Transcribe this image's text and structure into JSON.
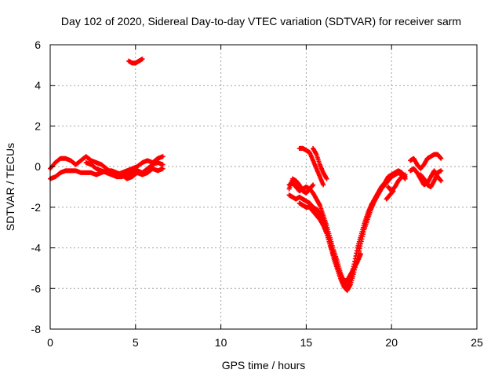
{
  "chart_data": {
    "type": "scatter",
    "title": "Day 102 of 2020, Sidereal Day-to-day VTEC variation (SDTVAR) for receiver sarm",
    "xlabel": "GPS time / hours",
    "ylabel": "SDTVAR / TECUs",
    "xlim": [
      0,
      25
    ],
    "ylim": [
      -8,
      6
    ],
    "xticks": [
      0,
      5,
      10,
      15,
      20,
      25
    ],
    "yticks": [
      -8,
      -6,
      -4,
      -2,
      0,
      2,
      4,
      6
    ],
    "xtick_labels": [
      "0",
      "5",
      "10",
      "15",
      "20",
      "25"
    ],
    "ytick_labels": [
      "-8",
      "-6",
      "-4",
      "-2",
      "0",
      "2",
      "4",
      "6"
    ],
    "grid": true,
    "marker": "+",
    "series": [
      {
        "name": "sarm",
        "color": "#ff0000",
        "segments": [
          [
            [
              0.0,
              -0.1
            ],
            [
              0.3,
              0.2
            ],
            [
              0.6,
              0.4
            ],
            [
              0.9,
              0.4
            ],
            [
              1.2,
              0.3
            ],
            [
              1.5,
              0.1
            ],
            [
              1.8,
              0.3
            ],
            [
              2.1,
              0.5
            ],
            [
              2.4,
              0.3
            ],
            [
              2.7,
              0.2
            ],
            [
              3.0,
              0.1
            ],
            [
              3.3,
              -0.1
            ],
            [
              3.6,
              -0.3
            ],
            [
              3.9,
              -0.4
            ],
            [
              4.2,
              -0.3
            ],
            [
              4.5,
              -0.2
            ],
            [
              4.8,
              -0.1
            ],
            [
              5.1,
              0.0
            ],
            [
              5.4,
              0.2
            ],
            [
              5.7,
              0.3
            ],
            [
              6.0,
              0.2
            ],
            [
              6.3,
              0.4
            ],
            [
              6.6,
              0.5
            ]
          ],
          [
            [
              0.0,
              -0.6
            ],
            [
              0.3,
              -0.5
            ],
            [
              0.6,
              -0.3
            ],
            [
              0.9,
              -0.2
            ],
            [
              1.2,
              -0.2
            ],
            [
              1.5,
              -0.2
            ],
            [
              1.8,
              -0.3
            ],
            [
              2.1,
              -0.3
            ],
            [
              2.4,
              -0.3
            ],
            [
              2.7,
              -0.4
            ],
            [
              3.0,
              -0.3
            ],
            [
              3.3,
              -0.2
            ],
            [
              3.6,
              -0.2
            ],
            [
              3.9,
              -0.3
            ],
            [
              4.2,
              -0.4
            ],
            [
              4.5,
              -0.6
            ],
            [
              4.8,
              -0.5
            ],
            [
              5.1,
              -0.3
            ],
            [
              5.4,
              -0.4
            ],
            [
              5.7,
              -0.3
            ],
            [
              6.0,
              -0.1
            ],
            [
              6.3,
              -0.2
            ],
            [
              6.6,
              -0.1
            ]
          ],
          [
            [
              2.1,
              0.2
            ],
            [
              2.4,
              0.1
            ],
            [
              2.7,
              -0.1
            ],
            [
              3.0,
              -0.2
            ],
            [
              3.3,
              -0.3
            ],
            [
              3.6,
              -0.4
            ],
            [
              3.9,
              -0.5
            ],
            [
              4.2,
              -0.5
            ],
            [
              4.5,
              -0.4
            ],
            [
              4.8,
              -0.3
            ],
            [
              5.1,
              -0.2
            ],
            [
              5.4,
              -0.3
            ],
            [
              5.7,
              -0.1
            ],
            [
              6.0,
              0.1
            ],
            [
              6.3,
              0.2
            ],
            [
              6.6,
              0.1
            ]
          ],
          [
            [
              4.6,
              5.2
            ],
            [
              4.8,
              5.1
            ],
            [
              5.0,
              5.1
            ],
            [
              5.2,
              5.2
            ],
            [
              5.4,
              5.3
            ]
          ],
          [
            [
              14.0,
              -0.9
            ],
            [
              14.2,
              -0.8
            ],
            [
              14.4,
              -1.0
            ],
            [
              14.6,
              -1.2
            ],
            [
              14.8,
              -1.1
            ],
            [
              15.0,
              -1.0
            ],
            [
              15.2,
              -1.1
            ],
            [
              15.4,
              -1.3
            ],
            [
              15.6,
              -1.6
            ],
            [
              15.8,
              -1.9
            ],
            [
              16.0,
              -2.4
            ],
            [
              16.2,
              -2.9
            ],
            [
              16.4,
              -3.5
            ],
            [
              16.6,
              -4.1
            ],
            [
              16.8,
              -4.6
            ],
            [
              17.0,
              -5.2
            ],
            [
              17.2,
              -5.7
            ],
            [
              17.4,
              -5.9
            ],
            [
              17.6,
              -5.5
            ],
            [
              17.8,
              -4.8
            ],
            [
              18.0,
              -4.0
            ],
            [
              18.2,
              -3.4
            ],
            [
              18.4,
              -2.8
            ],
            [
              18.6,
              -2.3
            ],
            [
              18.8,
              -1.9
            ],
            [
              19.0,
              -1.6
            ],
            [
              19.2,
              -1.3
            ],
            [
              19.4,
              -1.0
            ],
            [
              19.6,
              -0.8
            ],
            [
              19.8,
              -0.5
            ],
            [
              20.0,
              -0.4
            ],
            [
              20.2,
              -0.3
            ],
            [
              20.4,
              -0.2
            ],
            [
              20.6,
              -0.3
            ],
            [
              20.8,
              -0.5
            ]
          ],
          [
            [
              14.0,
              -1.4
            ],
            [
              14.2,
              -1.5
            ],
            [
              14.4,
              -1.6
            ],
            [
              14.6,
              -1.5
            ],
            [
              14.8,
              -1.6
            ],
            [
              15.0,
              -1.7
            ],
            [
              15.2,
              -1.8
            ],
            [
              15.4,
              -2.0
            ],
            [
              15.6,
              -2.1
            ],
            [
              15.8,
              -2.3
            ],
            [
              16.0,
              -2.7
            ],
            [
              16.2,
              -3.2
            ],
            [
              16.4,
              -3.8
            ],
            [
              16.6,
              -4.5
            ],
            [
              16.8,
              -5.0
            ],
            [
              17.0,
              -5.5
            ],
            [
              17.2,
              -5.9
            ],
            [
              17.4,
              -6.1
            ],
            [
              17.6,
              -5.8
            ],
            [
              17.8,
              -5.2
            ],
            [
              18.0,
              -4.5
            ],
            [
              18.2,
              -3.8
            ],
            [
              18.4,
              -3.1
            ],
            [
              18.6,
              -2.6
            ],
            [
              18.8,
              -2.1
            ],
            [
              19.0,
              -1.7
            ],
            [
              19.2,
              -1.4
            ],
            [
              19.4,
              -1.1
            ],
            [
              19.6,
              -0.9
            ],
            [
              19.8,
              -0.7
            ],
            [
              20.0,
              -0.5
            ],
            [
              20.2,
              -0.4
            ],
            [
              20.4,
              -0.3
            ],
            [
              20.6,
              -0.4
            ],
            [
              20.8,
              -0.6
            ]
          ],
          [
            [
              14.6,
              -1.8
            ],
            [
              14.8,
              -1.9
            ],
            [
              15.0,
              -2.0
            ],
            [
              15.2,
              -2.0
            ],
            [
              15.4,
              -2.2
            ],
            [
              15.6,
              -2.4
            ],
            [
              15.8,
              -2.6
            ],
            [
              16.0,
              -2.9
            ],
            [
              16.2,
              -3.3
            ],
            [
              16.4,
              -3.9
            ],
            [
              16.6,
              -4.4
            ],
            [
              16.8,
              -4.9
            ],
            [
              17.0,
              -5.3
            ],
            [
              17.2,
              -5.6
            ],
            [
              17.4,
              -5.6
            ],
            [
              17.6,
              -5.3
            ],
            [
              17.8,
              -5.0
            ],
            [
              18.0,
              -4.7
            ],
            [
              18.2,
              -4.3
            ]
          ],
          [
            [
              14.0,
              -1.1
            ],
            [
              14.2,
              -0.6
            ],
            [
              14.4,
              -0.7
            ],
            [
              14.6,
              -0.9
            ],
            [
              14.8,
              -1.2
            ],
            [
              15.0,
              -1.3
            ],
            [
              15.2,
              -1.1
            ],
            [
              15.4,
              -0.9
            ]
          ],
          [
            [
              14.6,
              0.9
            ],
            [
              14.8,
              0.9
            ],
            [
              15.0,
              0.8
            ],
            [
              15.2,
              0.7
            ],
            [
              15.4,
              0.3
            ],
            [
              15.6,
              -0.1
            ],
            [
              15.8,
              -0.5
            ],
            [
              16.0,
              -0.9
            ]
          ],
          [
            [
              15.4,
              0.9
            ],
            [
              15.6,
              0.6
            ],
            [
              15.8,
              0.1
            ],
            [
              16.0,
              -0.3
            ],
            [
              16.2,
              -0.6
            ]
          ],
          [
            [
              19.8,
              -1.0
            ],
            [
              20.0,
              -1.2
            ],
            [
              20.2,
              -1.0
            ],
            [
              20.4,
              -0.7
            ],
            [
              20.6,
              -0.5
            ],
            [
              20.8,
              -0.4
            ]
          ],
          [
            [
              19.7,
              -1.6
            ],
            [
              19.9,
              -1.4
            ],
            [
              20.1,
              -1.2
            ]
          ],
          [
            [
              21.1,
              0.3
            ],
            [
              21.3,
              0.4
            ],
            [
              21.5,
              0.1
            ],
            [
              21.7,
              -0.1
            ],
            [
              21.9,
              0.1
            ],
            [
              22.1,
              0.4
            ],
            [
              22.3,
              0.5
            ],
            [
              22.5,
              0.6
            ],
            [
              22.7,
              0.6
            ],
            [
              22.9,
              0.4
            ]
          ],
          [
            [
              21.1,
              -0.2
            ],
            [
              21.3,
              -0.1
            ],
            [
              21.5,
              -0.3
            ],
            [
              21.7,
              -0.6
            ],
            [
              21.9,
              -0.9
            ],
            [
              22.1,
              -0.8
            ],
            [
              22.3,
              -0.5
            ],
            [
              22.5,
              -0.2
            ],
            [
              22.7,
              -0.5
            ],
            [
              22.9,
              -0.7
            ]
          ],
          [
            [
              21.7,
              -0.4
            ],
            [
              21.9,
              -0.6
            ],
            [
              22.1,
              -0.9
            ],
            [
              22.3,
              -1.0
            ],
            [
              22.5,
              -0.7
            ],
            [
              22.7,
              -0.3
            ],
            [
              22.9,
              -0.2
            ]
          ]
        ]
      }
    ]
  }
}
